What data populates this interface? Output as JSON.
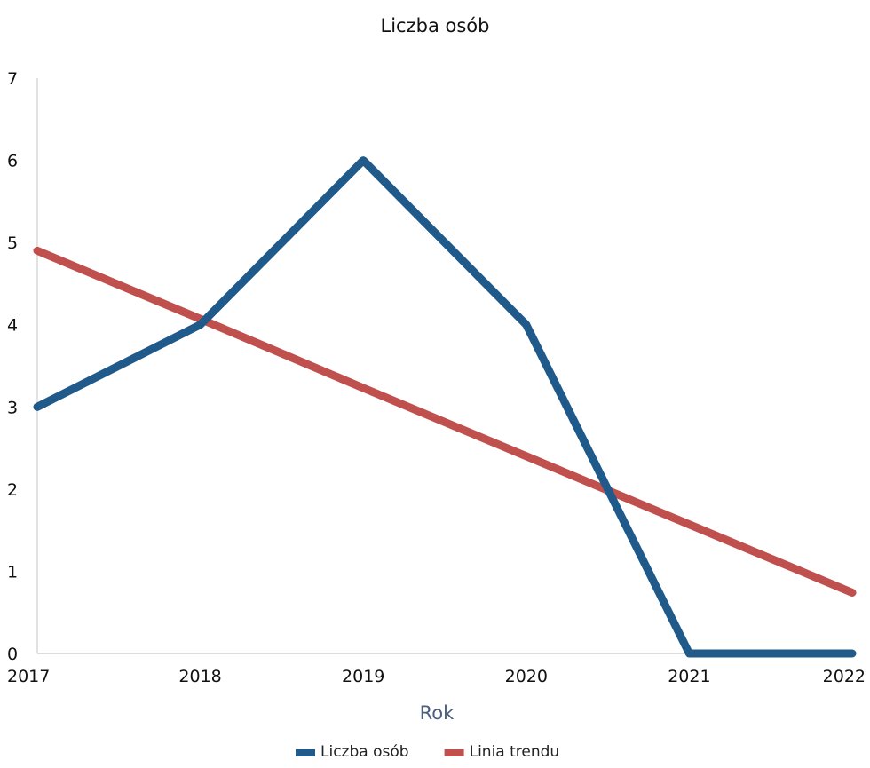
{
  "chart_data": {
    "type": "line",
    "title": "Liczba osób",
    "xlabel": "Rok",
    "ylabel": "",
    "categories": [
      "2017",
      "2018",
      "2019",
      "2020",
      "2021",
      "2022"
    ],
    "ylim": [
      0,
      7
    ],
    "yticks": [
      "0",
      "1",
      "2",
      "3",
      "4",
      "5",
      "6",
      "7"
    ],
    "grid": false,
    "legend_position": "bottom",
    "series": [
      {
        "name": "Liczba osób",
        "color": "#1f5a8a",
        "values": [
          3,
          4,
          6,
          4,
          0,
          0
        ]
      },
      {
        "name": "Linia trendu",
        "color": "#c0504d",
        "values": [
          4.9,
          4.07,
          3.23,
          2.4,
          1.57,
          0.74
        ]
      }
    ]
  }
}
